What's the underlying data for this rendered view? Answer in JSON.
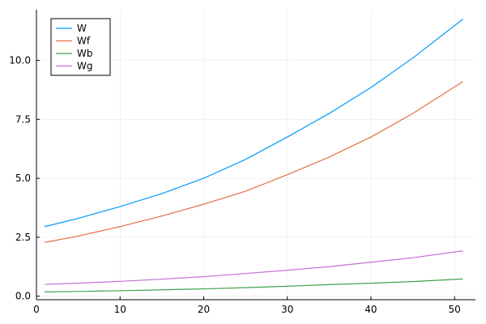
{
  "chart_data": {
    "type": "line",
    "title": "",
    "xlabel": "",
    "ylabel": "",
    "xlim": [
      0,
      52.5
    ],
    "ylim": [
      -0.15,
      12.15
    ],
    "xticks": [
      0,
      10,
      20,
      30,
      40,
      50
    ],
    "xtick_labels": [
      "0",
      "10",
      "20",
      "30",
      "40",
      "50"
    ],
    "yticks": [
      0,
      2.5,
      5,
      7.5,
      10
    ],
    "ytick_labels": [
      "0.0",
      "2.5",
      "5.0",
      "7.5",
      "10.0"
    ],
    "grid": true,
    "legend_position": "top-left",
    "x": [
      1,
      5,
      10,
      15,
      20,
      25,
      30,
      35,
      40,
      45,
      51
    ],
    "series": [
      {
        "name": "W",
        "color": "#009AFA",
        "values": [
          2.95,
          3.3,
          3.8,
          4.35,
          5.0,
          5.8,
          6.75,
          7.75,
          8.85,
          10.1,
          11.75
        ]
      },
      {
        "name": "Wf",
        "color": "#E36F47",
        "values": [
          2.28,
          2.55,
          2.95,
          3.4,
          3.9,
          4.45,
          5.15,
          5.9,
          6.75,
          7.75,
          9.1
        ]
      },
      {
        "name": "Wb",
        "color": "#3EA44E",
        "values": [
          0.18,
          0.2,
          0.23,
          0.27,
          0.31,
          0.36,
          0.42,
          0.49,
          0.55,
          0.62,
          0.73
        ]
      },
      {
        "name": "Wg",
        "color": "#C371D2",
        "values": [
          0.5,
          0.55,
          0.63,
          0.72,
          0.83,
          0.96,
          1.1,
          1.25,
          1.44,
          1.63,
          1.92
        ]
      }
    ]
  }
}
